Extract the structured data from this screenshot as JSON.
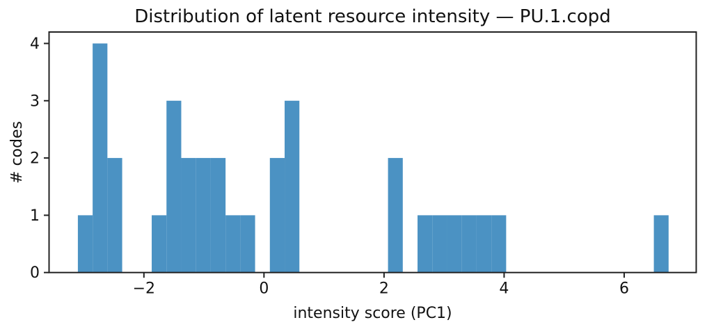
{
  "chart_data": {
    "type": "bar",
    "subtype": "histogram",
    "title": "Distribution of latent resource intensity — PU.1.copd",
    "xlabel": "intensity score (PC1)",
    "ylabel": "# codes",
    "bin_start": -3.1,
    "bin_width": 0.246,
    "counts": [
      1,
      4,
      2,
      0,
      0,
      1,
      3,
      2,
      2,
      2,
      1,
      1,
      0,
      2,
      3,
      0,
      0,
      0,
      0,
      0,
      0,
      2,
      0,
      1,
      1,
      1,
      1,
      1,
      1,
      0,
      0,
      0,
      0,
      0,
      0,
      0,
      0,
      0,
      0,
      1
    ],
    "xlim": [
      -3.58,
      7.2
    ],
    "ylim": [
      0,
      4.2
    ],
    "xticks": [
      {
        "value": -2,
        "label": "−2"
      },
      {
        "value": 0,
        "label": "0"
      },
      {
        "value": 2,
        "label": "2"
      },
      {
        "value": 4,
        "label": "4"
      },
      {
        "value": 6,
        "label": "6"
      }
    ],
    "yticks": [
      {
        "value": 0,
        "label": "0"
      },
      {
        "value": 1,
        "label": "1"
      },
      {
        "value": 2,
        "label": "2"
      },
      {
        "value": 3,
        "label": "3"
      },
      {
        "value": 4,
        "label": "4"
      }
    ],
    "bar_color": "#4B92C3",
    "axis_color": "#222222",
    "grid": false,
    "legend": false
  }
}
